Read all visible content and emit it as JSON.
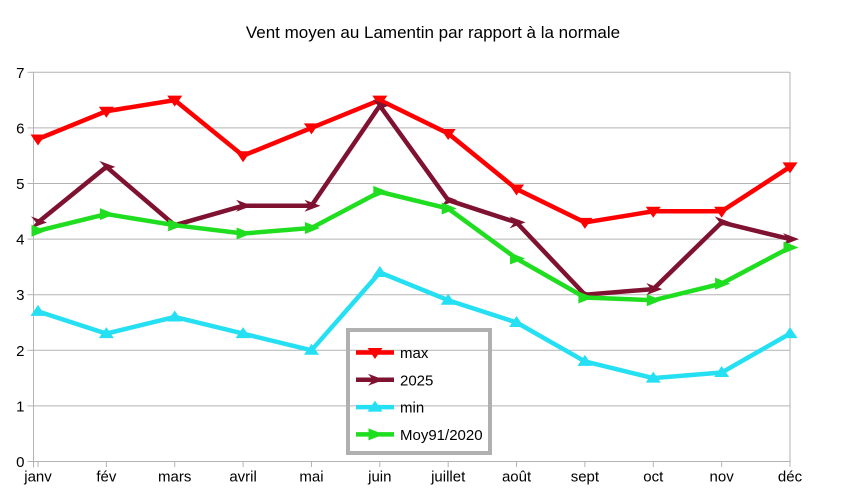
{
  "chart_data": {
    "type": "line",
    "title": "Vent moyen au Lamentin par rapport à la normale",
    "categories": [
      "janv",
      "fév",
      "mars",
      "avril",
      "mai",
      "juin",
      "juillet",
      "août",
      "sept",
      "oct",
      "nov",
      "déc"
    ],
    "series": [
      {
        "name": "max",
        "color": "#ff0000",
        "marker": "triangle-down",
        "values": [
          5.8,
          6.3,
          6.5,
          5.5,
          6.0,
          6.5,
          5.9,
          4.9,
          4.3,
          4.5,
          4.5,
          5.3
        ]
      },
      {
        "name": "2025",
        "color": "#7e1230",
        "marker": "arrow-right",
        "values": [
          4.3,
          5.3,
          4.25,
          4.6,
          4.6,
          6.4,
          4.7,
          4.3,
          3.0,
          3.1,
          4.3,
          4.0
        ]
      },
      {
        "name": "min",
        "color": "#25dff2",
        "marker": "triangle-up",
        "values": [
          2.7,
          2.3,
          2.6,
          2.3,
          2.0,
          3.4,
          2.9,
          2.5,
          1.8,
          1.5,
          1.6,
          2.3
        ]
      },
      {
        "name": "Moy91/2020",
        "color": "#1fdd1f",
        "marker": "triangle-right",
        "values": [
          4.15,
          4.45,
          4.25,
          4.1,
          4.2,
          4.85,
          4.55,
          3.65,
          2.95,
          2.9,
          3.2,
          3.85
        ]
      }
    ],
    "xlabel": "",
    "ylabel": "",
    "ylim": [
      0,
      7
    ],
    "ytick_step": 1,
    "grid": "horizontal",
    "legend_position": "inside-bottom-center"
  },
  "colors": {
    "grid": "#b3b3b3",
    "axis": "#b3b3b3",
    "legend_border": "#b0b0b0",
    "text": "#000000",
    "background": "#ffffff"
  }
}
